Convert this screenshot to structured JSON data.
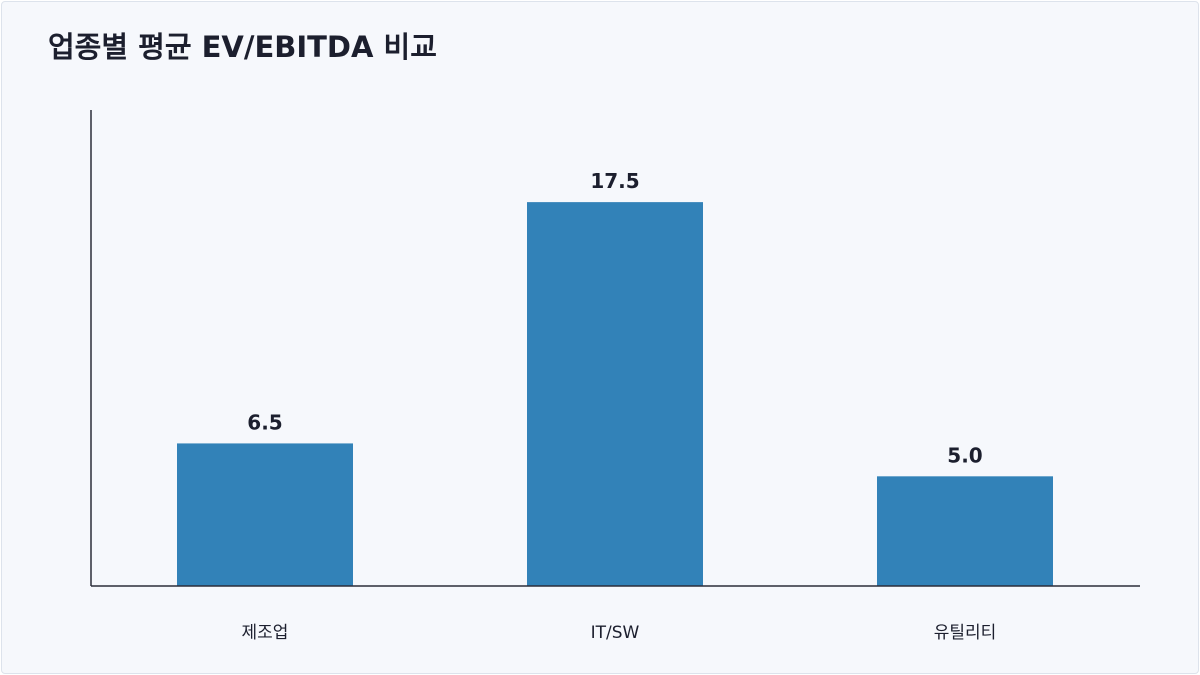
{
  "chart_data": {
    "type": "bar",
    "title": "업종별 평균 EV/EBITDA 비교",
    "categories": [
      "제조업",
      "IT/SW",
      "유틸리티"
    ],
    "values": [
      6.5,
      17.5,
      5.0
    ],
    "value_labels": [
      "6.5",
      "17.5",
      "5.0"
    ],
    "xlabel": "",
    "ylabel": "",
    "ylim": [
      0,
      21.7
    ],
    "grid": false,
    "bar_color": "#3282b8",
    "axis_color": "#2b2d3a"
  }
}
